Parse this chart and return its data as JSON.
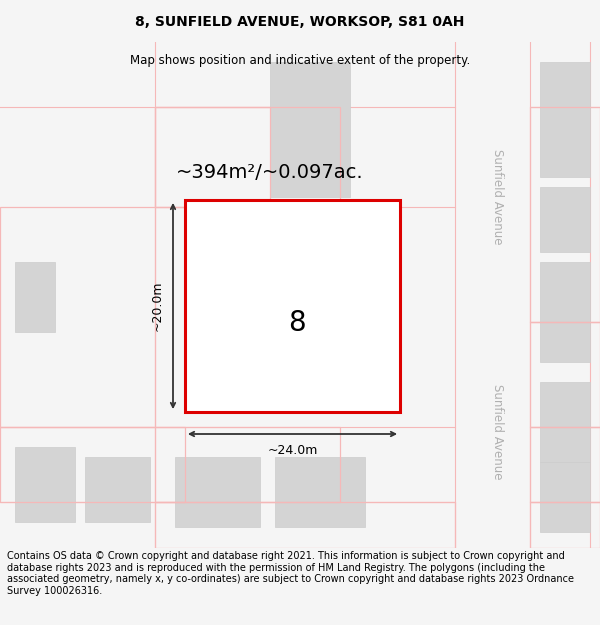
{
  "title": "8, SUNFIELD AVENUE, WORKSOP, S81 0AH",
  "subtitle": "Map shows position and indicative extent of the property.",
  "footer": "Contains OS data © Crown copyright and database right 2021. This information is subject to Crown copyright and database rights 2023 and is reproduced with the permission of HM Land Registry. The polygons (including the associated geometry, namely x, y co-ordinates) are subject to Crown copyright and database rights 2023 Ordnance Survey 100026316.",
  "area_label": "~394m²/~0.097ac.",
  "width_label": "~24.0m",
  "height_label": "~20.0m",
  "number_label": "8",
  "bg_color": "#f5f5f5",
  "map_bg": "#ffffff",
  "title_fontsize": 10,
  "subtitle_fontsize": 8.5,
  "footer_fontsize": 7,
  "plot_outline_color": "#dd0000",
  "dim_line_color": "#333333",
  "building_color": "#d4d4d4",
  "building_edge_color": "#cccccc",
  "road_outline_color": "#f5b8b8",
  "street_label_color": "#b0b0b0",
  "street_label": "Sunfield Avenue",
  "area_label_fontsize": 14,
  "number_fontsize": 20,
  "dim_fontsize": 9
}
